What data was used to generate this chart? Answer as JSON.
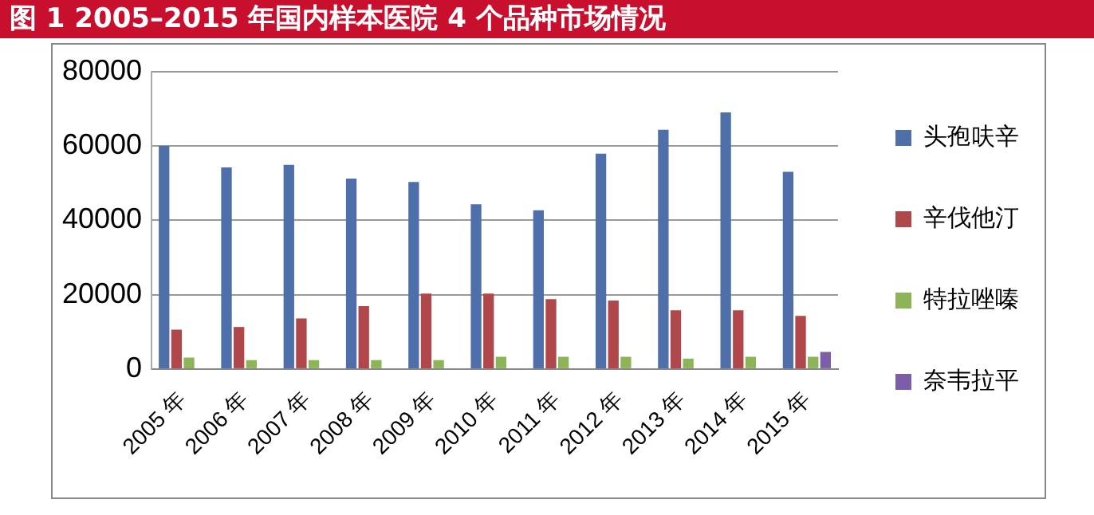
{
  "chart_data": {
    "type": "bar",
    "title": "图 1   2005–2015 年国内样本医院 4 个品种市场情况",
    "categories": [
      "2005 年",
      "2006 年",
      "2007 年",
      "2008 年",
      "2009 年",
      "2010 年",
      "2011 年",
      "2012 年",
      "2013 年",
      "2014 年",
      "2015 年"
    ],
    "series": [
      {
        "name": "头孢呋辛",
        "color": "#4f6fab",
        "values": [
          60000,
          54200,
          54900,
          51200,
          50300,
          44300,
          42700,
          57900,
          64300,
          69000,
          53000
        ]
      },
      {
        "name": "辛伐他汀",
        "color": "#b0474a",
        "values": [
          10600,
          11300,
          13600,
          16900,
          20300,
          20300,
          18800,
          18400,
          15800,
          15800,
          14300
        ]
      },
      {
        "name": "特拉唑嗪",
        "color": "#8db558",
        "values": [
          3100,
          2400,
          2400,
          2400,
          2400,
          3300,
          3300,
          3300,
          2800,
          3300,
          3300
        ]
      },
      {
        "name": "奈韦拉平",
        "color": "#7b5ea7",
        "values": [
          null,
          null,
          null,
          null,
          null,
          null,
          null,
          null,
          null,
          null,
          4600
        ]
      }
    ],
    "ylim": [
      0,
      80000
    ],
    "yticks": [
      0,
      20000,
      40000,
      60000,
      80000
    ],
    "grid": "y",
    "legend": "right"
  }
}
